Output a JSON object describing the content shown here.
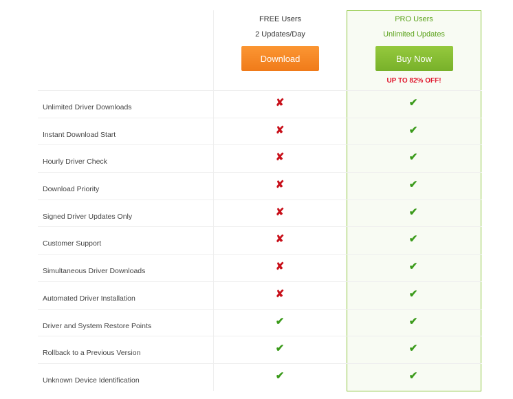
{
  "free": {
    "title": "FREE Users",
    "subtitle": "2 Updates/Day",
    "button": "Download"
  },
  "pro": {
    "title": "PRO Users",
    "subtitle": "Unlimited Updates",
    "button": "Buy Now",
    "promo": "UP TO 82% OFF!"
  },
  "features": [
    {
      "label": "Unlimited Driver Downloads",
      "free": false,
      "pro": true
    },
    {
      "label": "Instant Download Start",
      "free": false,
      "pro": true
    },
    {
      "label": "Hourly Driver Check",
      "free": false,
      "pro": true
    },
    {
      "label": "Download Priority",
      "free": false,
      "pro": true
    },
    {
      "label": "Signed Driver Updates Only",
      "free": false,
      "pro": true
    },
    {
      "label": "Customer Support",
      "free": false,
      "pro": true
    },
    {
      "label": "Simultaneous Driver Downloads",
      "free": false,
      "pro": true
    },
    {
      "label": "Automated Driver Installation",
      "free": false,
      "pro": true
    },
    {
      "label": "Driver and System Restore Points",
      "free": true,
      "pro": true
    },
    {
      "label": "Rollback to a Previous Version",
      "free": true,
      "pro": true
    },
    {
      "label": "Unknown Device Identification",
      "free": true,
      "pro": true
    }
  ]
}
